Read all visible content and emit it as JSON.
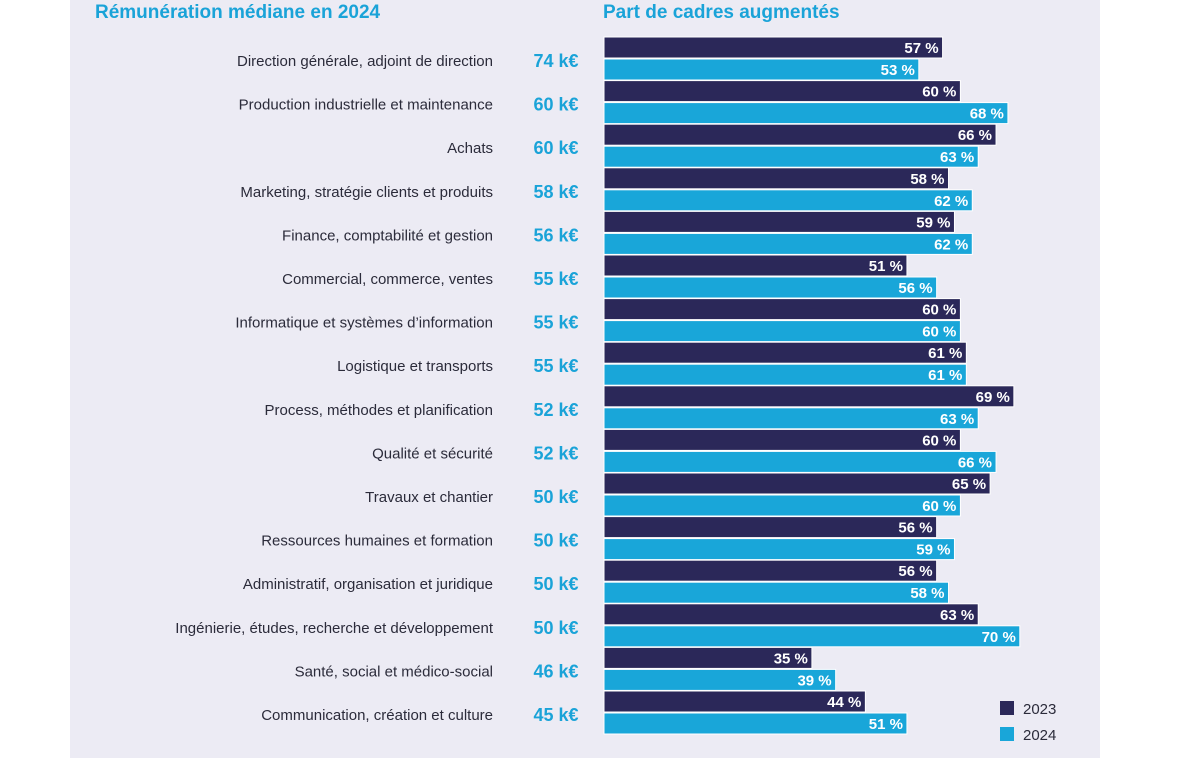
{
  "headers": {
    "salary_title": "Rémunération médiane en 2024",
    "share_title": "Part de cadres augmentés"
  },
  "colors": {
    "accent": "#1aa3d8",
    "series_2023": "#2b2859",
    "series_2024": "#19a6d9",
    "panel_bg": "#ecebf4"
  },
  "chart_data": {
    "type": "bar",
    "orientation": "horizontal",
    "title": "Part de cadres augmentés",
    "value_suffix": " %",
    "xlim": [
      0,
      100
    ],
    "legend_position": "bottom-right",
    "categories": [
      "Direction générale, adjoint de direction",
      "Production industrielle et maintenance",
      "Achats",
      "Marketing, stratégie clients et produits",
      "Finance, comptabilité et gestion",
      "Commercial, commerce, ventes",
      "Informatique et systèmes d’information",
      "Logistique et transports",
      "Process, méthodes et planification",
      "Qualité et sécurité",
      "Travaux et chantier",
      "Ressources humaines et formation",
      "Administratif, organisation et juridique",
      "Ingénierie, études, recherche et développement",
      "Santé, social et médico-social",
      "Communication, création et culture"
    ],
    "median_salary_2024": [
      "74 k€",
      "60 k€",
      "60 k€",
      "58 k€",
      "56 k€",
      "55 k€",
      "55 k€",
      "55 k€",
      "52 k€",
      "52 k€",
      "50 k€",
      "50 k€",
      "50 k€",
      "50 k€",
      "46 k€",
      "45 k€"
    ],
    "series": [
      {
        "name": "2023",
        "values": [
          57,
          60,
          66,
          58,
          59,
          51,
          60,
          61,
          69,
          60,
          65,
          56,
          56,
          63,
          35,
          44
        ]
      },
      {
        "name": "2024",
        "values": [
          53,
          68,
          63,
          62,
          62,
          56,
          60,
          61,
          63,
          66,
          60,
          59,
          58,
          70,
          39,
          51
        ]
      }
    ]
  }
}
